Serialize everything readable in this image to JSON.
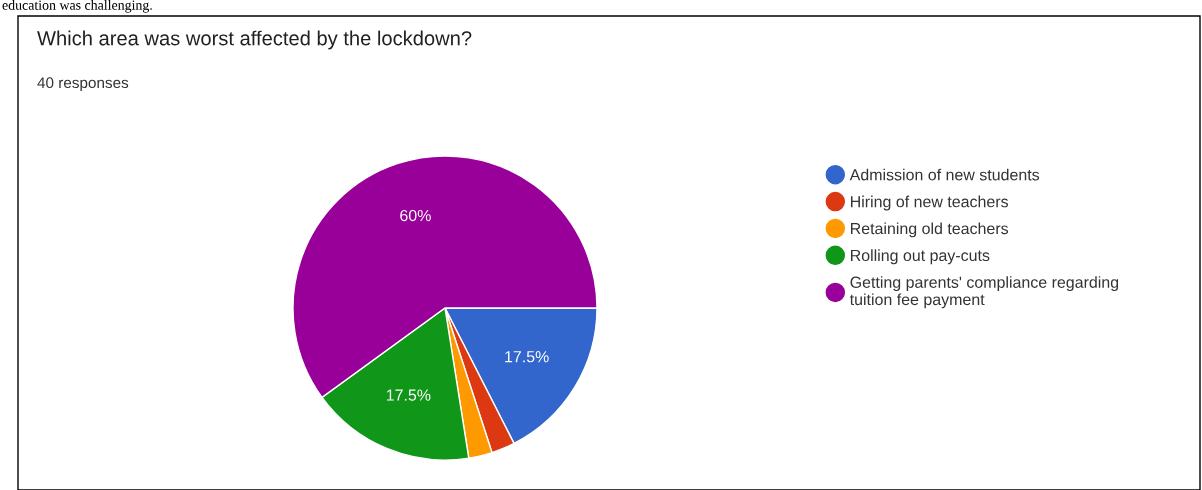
{
  "chart_data": {
    "type": "pie",
    "title": "Which area was worst affected by the lockdown?",
    "subtitle": "40 responses",
    "annotations": [
      "education was challenging."
    ],
    "categories": [
      "Admission of new students",
      "Hiring of new teachers",
      "Retaining old teachers",
      "Rolling out pay-cuts",
      "Getting parents' compliance regarding\ntuition fee payment"
    ],
    "values": [
      17.5,
      2.5,
      2.5,
      17.5,
      60
    ],
    "colors": [
      "#3366cc",
      "#dc3912",
      "#ff9900",
      "#109618",
      "#990099"
    ],
    "value_labels": [
      "17.5%",
      null,
      null,
      "17.5%",
      "60%"
    ],
    "legend": "right"
  }
}
